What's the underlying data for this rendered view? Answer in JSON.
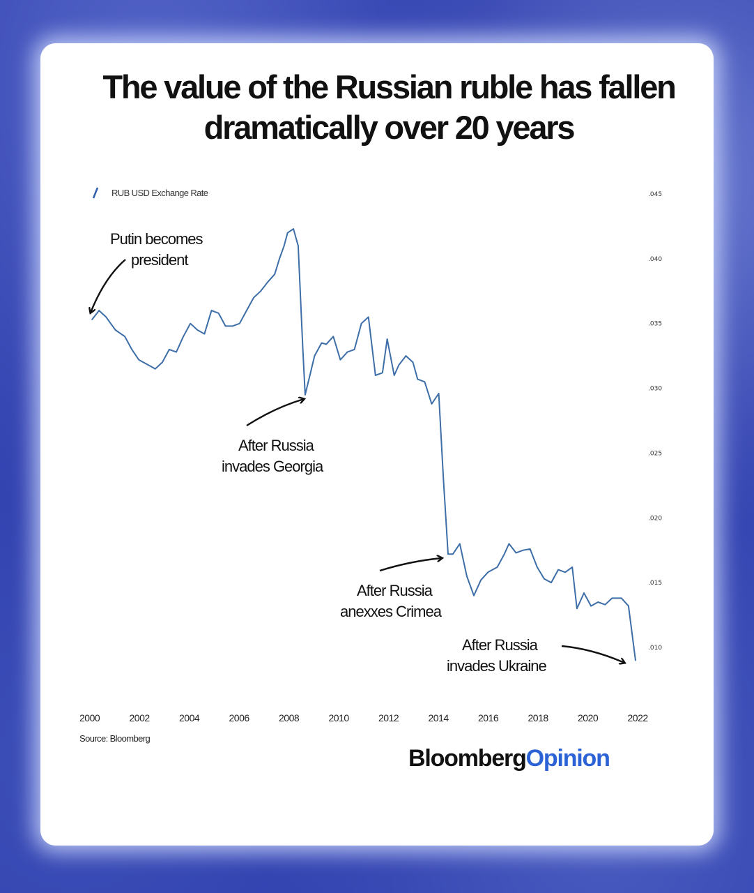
{
  "headline": "The value of the Russian ruble has fallen dramatically over 20 years",
  "brand": {
    "name": "Bloomberg",
    "suffix": "Opinion",
    "suffix_color": "#2b62d6"
  },
  "colors": {
    "line": "#3d6ea8",
    "frame": "#2f3fae"
  },
  "chart_data": {
    "type": "line",
    "series": [
      {
        "name": "RUB USD Exchange Rate",
        "points": [
          [
            2000.0,
            0.0353
          ],
          [
            2000.3,
            0.036
          ],
          [
            2000.6,
            0.0355
          ],
          [
            2001.0,
            0.0345
          ],
          [
            2001.4,
            0.034
          ],
          [
            2001.7,
            0.033
          ],
          [
            2002.0,
            0.0322
          ],
          [
            2002.4,
            0.0318
          ],
          [
            2002.7,
            0.0315
          ],
          [
            2003.0,
            0.032
          ],
          [
            2003.3,
            0.033
          ],
          [
            2003.6,
            0.0328
          ],
          [
            2003.9,
            0.034
          ],
          [
            2004.2,
            0.035
          ],
          [
            2004.5,
            0.0345
          ],
          [
            2004.8,
            0.0342
          ],
          [
            2005.1,
            0.036
          ],
          [
            2005.4,
            0.0358
          ],
          [
            2005.7,
            0.0348
          ],
          [
            2006.0,
            0.0348
          ],
          [
            2006.3,
            0.035
          ],
          [
            2006.6,
            0.036
          ],
          [
            2006.9,
            0.037
          ],
          [
            2007.2,
            0.0375
          ],
          [
            2007.5,
            0.0382
          ],
          [
            2007.8,
            0.0388
          ],
          [
            2008.0,
            0.04
          ],
          [
            2008.2,
            0.041
          ],
          [
            2008.35,
            0.042
          ],
          [
            2008.6,
            0.0423
          ],
          [
            2008.8,
            0.041
          ],
          [
            2009.0,
            0.033
          ],
          [
            2009.1,
            0.0295
          ],
          [
            2009.3,
            0.031
          ],
          [
            2009.5,
            0.0325
          ],
          [
            2009.8,
            0.0335
          ],
          [
            2010.0,
            0.0334
          ],
          [
            2010.3,
            0.034
          ],
          [
            2010.6,
            0.0322
          ],
          [
            2010.9,
            0.0328
          ],
          [
            2011.2,
            0.033
          ],
          [
            2011.5,
            0.035
          ],
          [
            2011.8,
            0.0355
          ],
          [
            2012.1,
            0.031
          ],
          [
            2012.4,
            0.0312
          ],
          [
            2012.6,
            0.0338
          ],
          [
            2012.9,
            0.031
          ],
          [
            2013.1,
            0.0318
          ],
          [
            2013.4,
            0.0325
          ],
          [
            2013.7,
            0.032
          ],
          [
            2013.9,
            0.0307
          ],
          [
            2014.2,
            0.0305
          ],
          [
            2014.5,
            0.0288
          ],
          [
            2014.8,
            0.0296
          ],
          [
            2015.0,
            0.023
          ],
          [
            2015.2,
            0.0172
          ],
          [
            2015.4,
            0.0172
          ],
          [
            2015.7,
            0.018
          ],
          [
            2016.0,
            0.0155
          ],
          [
            2016.3,
            0.014
          ],
          [
            2016.6,
            0.0152
          ],
          [
            2016.9,
            0.0158
          ],
          [
            2017.3,
            0.0162
          ],
          [
            2017.6,
            0.0172
          ],
          [
            2017.8,
            0.018
          ],
          [
            2018.1,
            0.0173
          ],
          [
            2018.4,
            0.0175
          ],
          [
            2018.7,
            0.0176
          ],
          [
            2019.0,
            0.0162
          ],
          [
            2019.3,
            0.0153
          ],
          [
            2019.6,
            0.015
          ],
          [
            2019.9,
            0.016
          ],
          [
            2020.2,
            0.0158
          ],
          [
            2020.5,
            0.0162
          ],
          [
            2020.7,
            0.013
          ],
          [
            2021.0,
            0.0142
          ],
          [
            2021.3,
            0.0132
          ],
          [
            2021.6,
            0.0135
          ],
          [
            2021.9,
            0.0133
          ],
          [
            2022.2,
            0.0138
          ],
          [
            2022.6,
            0.0138
          ],
          [
            2022.9,
            0.0132
          ],
          [
            2023.2,
            0.009
          ]
        ]
      }
    ],
    "x_ticks": [
      "2000",
      "2002",
      "2004",
      "2006",
      "2008",
      "2010",
      "2012",
      "2014",
      "2016",
      "2018",
      "2020",
      "2022"
    ],
    "y_ticks": [
      ".045",
      ".040",
      ".035",
      ".030",
      ".025",
      ".020",
      ".015",
      ".010"
    ],
    "xlim": [
      2000,
      2023.2
    ],
    "ylim": [
      0.0085,
      0.046
    ],
    "y_axis_side": "right",
    "grid": false,
    "legend_position": "top-left",
    "legend_label": "RUB USD Exchange Rate",
    "annotations": [
      {
        "lines": [
          "Putin becomes",
          "president"
        ]
      },
      {
        "lines": [
          "After Russia",
          "invades Georgia"
        ]
      },
      {
        "lines": [
          "After Russia",
          "anexxes Crimea"
        ]
      },
      {
        "lines": [
          "After Russia",
          "invades Ukraine"
        ]
      }
    ],
    "source": "Source: Bloomberg"
  }
}
